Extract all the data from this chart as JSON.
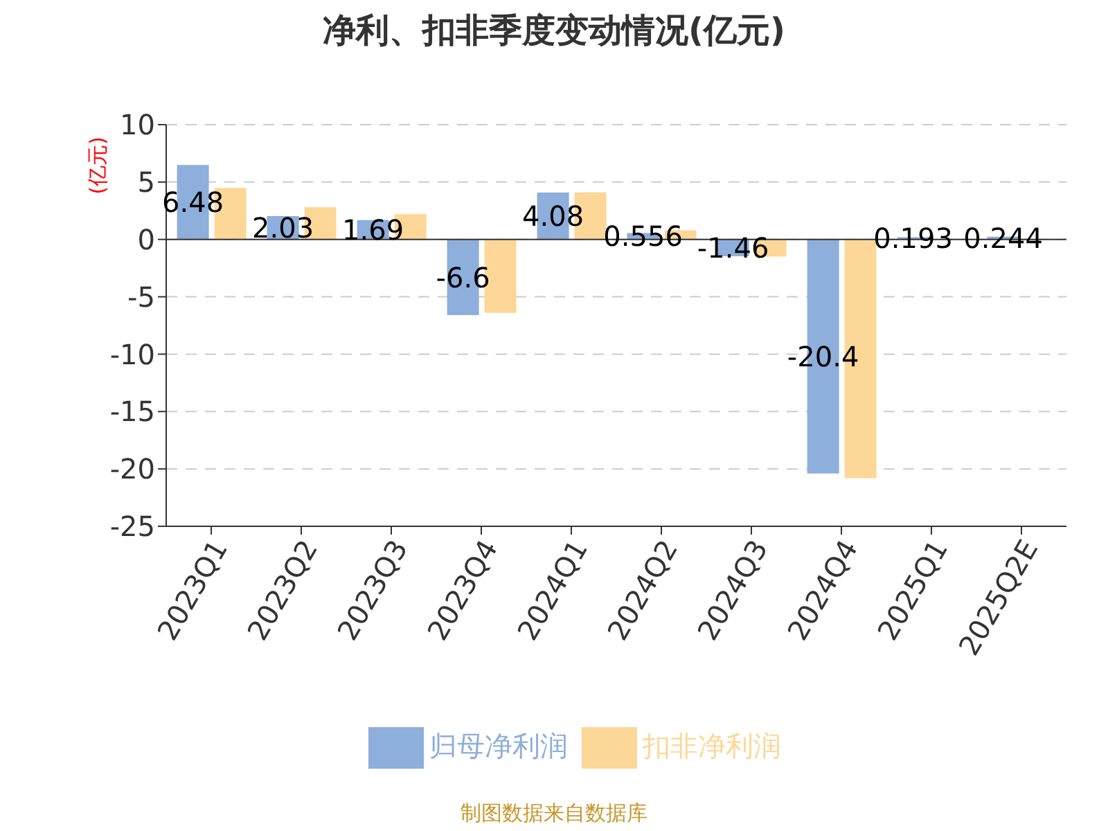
{
  "chart_data": {
    "type": "bar",
    "title": "净利、扣非季度变动情况(亿元)",
    "ylabel": "(亿元)",
    "categories": [
      "2023Q1",
      "2023Q2",
      "2023Q3",
      "2023Q4",
      "2024Q1",
      "2024Q2",
      "2024Q3",
      "2024Q4",
      "2025Q1",
      "2025Q2E"
    ],
    "series": [
      {
        "name": "归母净利润",
        "color": "#8eaedb",
        "values": [
          6.48,
          2.03,
          1.69,
          -6.6,
          4.08,
          0.556,
          -1.46,
          -20.4,
          0.193,
          0.244
        ],
        "data_labels": true
      },
      {
        "name": "扣非净利润",
        "color": "#fdd797",
        "values": [
          4.5,
          2.8,
          2.2,
          -6.4,
          4.1,
          0.8,
          -1.5,
          -20.8,
          null,
          null
        ]
      }
    ],
    "ylim": [
      -25,
      10
    ],
    "yticks": [
      -25,
      -20,
      -15,
      -10,
      -5,
      0,
      5,
      10
    ],
    "grid": "y",
    "legend": "bottom",
    "annotations": [
      "制图数据来自数据库"
    ]
  }
}
